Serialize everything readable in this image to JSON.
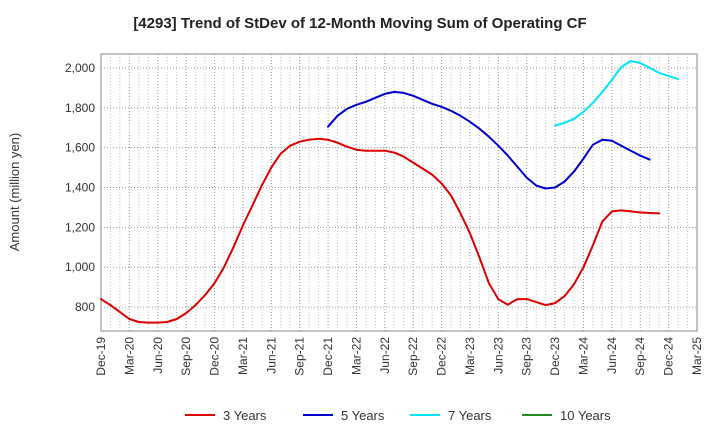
{
  "chart_data": {
    "type": "line",
    "title": "[4293]  Trend of StDev of 12-Month Moving Sum of Operating CF",
    "xlabel": "",
    "ylabel": "Amount (million yen)",
    "ylim": [
      680,
      2070
    ],
    "yticks": [
      800,
      1000,
      1200,
      1400,
      1600,
      1800,
      2000
    ],
    "ytick_labels": [
      "800",
      "1,000",
      "1,200",
      "1,400",
      "1,600",
      "1,800",
      "2,000"
    ],
    "xticks": [
      "Dec-19",
      "Mar-20",
      "Jun-20",
      "Sep-20",
      "Dec-20",
      "Mar-21",
      "Jun-21",
      "Sep-21",
      "Dec-21",
      "Mar-22",
      "Jun-22",
      "Sep-22",
      "Dec-22",
      "Mar-23",
      "Jun-23",
      "Sep-23",
      "Dec-23",
      "Mar-24",
      "Jun-24",
      "Sep-24",
      "Dec-24",
      "Mar-25"
    ],
    "grid": true,
    "legend_position": "bottom",
    "series": [
      {
        "name": "3 Years",
        "color": "#dd0000",
        "start_month_index": 0,
        "values": [
          840,
          810,
          775,
          740,
          725,
          722,
          722,
          725,
          740,
          770,
          810,
          860,
          920,
          1000,
          1100,
          1210,
          1310,
          1410,
          1500,
          1570,
          1610,
          1630,
          1640,
          1645,
          1640,
          1625,
          1605,
          1590,
          1585,
          1585,
          1585,
          1575,
          1555,
          1525,
          1495,
          1465,
          1420,
          1360,
          1270,
          1170,
          1050,
          920,
          840,
          812,
          840,
          840,
          825,
          810,
          820,
          855,
          915,
          1000,
          1110,
          1230,
          1280,
          1285,
          1280,
          1275,
          1272,
          1270
        ]
      },
      {
        "name": "5 Years",
        "color": "#0000cc",
        "start_month_index": 24,
        "values": [
          1705,
          1760,
          1795,
          1815,
          1830,
          1850,
          1870,
          1880,
          1875,
          1860,
          1840,
          1820,
          1805,
          1785,
          1760,
          1730,
          1695,
          1655,
          1610,
          1560,
          1505,
          1450,
          1410,
          1395,
          1400,
          1430,
          1480,
          1545,
          1615,
          1640,
          1635,
          1610,
          1585,
          1560,
          1540
        ]
      },
      {
        "name": "7 Years",
        "color": "#00e5ff",
        "start_month_index": 48,
        "values": [
          1710,
          1725,
          1745,
          1780,
          1825,
          1880,
          1940,
          2005,
          2035,
          2025,
          2000,
          1975,
          1960,
          1945
        ]
      },
      {
        "name": "10 Years",
        "color": "#228b22",
        "start_month_index": 0,
        "values": []
      }
    ]
  }
}
